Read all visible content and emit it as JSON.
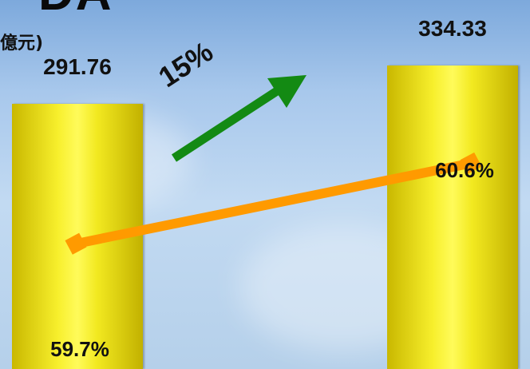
{
  "header": {
    "title_fragment": "DA",
    "unit_label": "億元)"
  },
  "chart_data": {
    "type": "bar",
    "categories": [
      "",
      ""
    ],
    "series": [
      {
        "values": [
          291.76,
          334.33
        ]
      },
      {
        "values": [
          59.7,
          60.6
        ]
      }
    ],
    "value_labels": [
      "291.76",
      "334.33"
    ],
    "percent_labels": [
      "59.7%",
      "60.6%"
    ],
    "growth_annotation": "15%",
    "colors": {
      "bar": "#f2e920",
      "line": "#ff9a00",
      "arrow": "#138a13"
    },
    "ylim": [
      0,
      345
    ],
    "line_ylim": [
      58.3,
      61.8
    ]
  }
}
